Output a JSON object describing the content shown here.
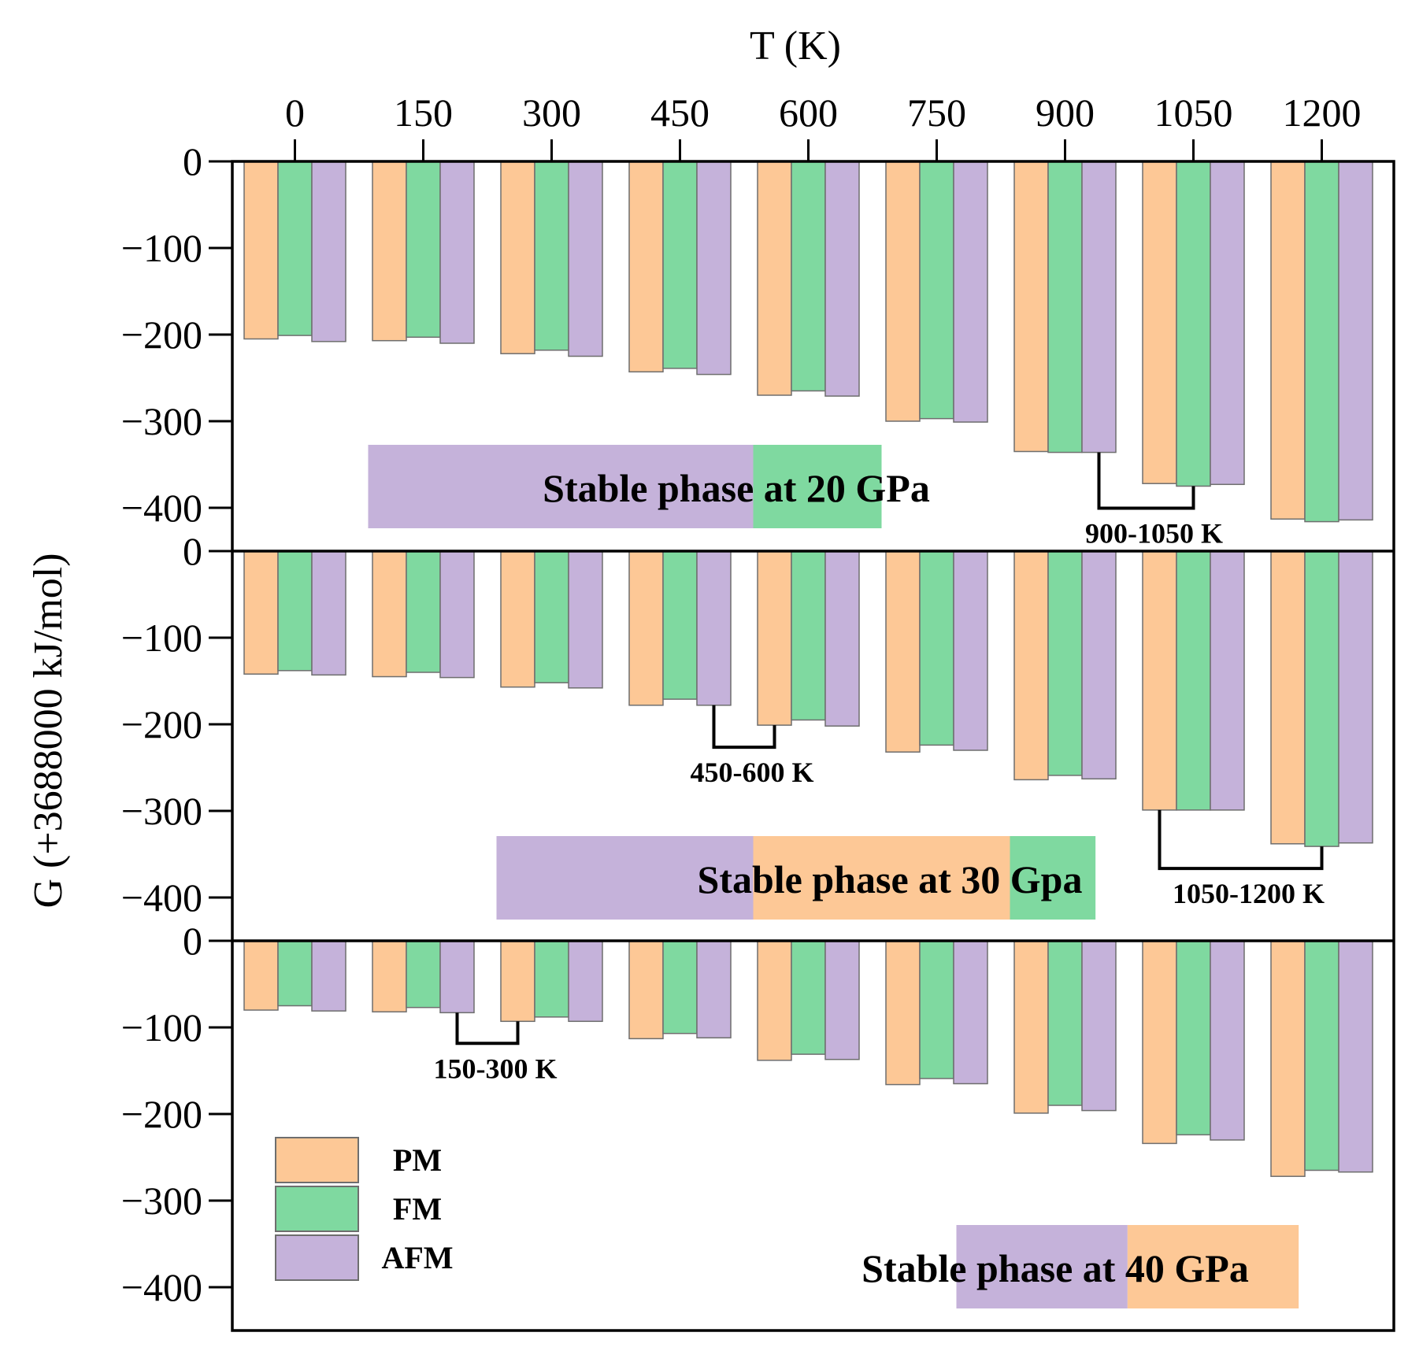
{
  "chart_data": {
    "type": "bar",
    "xlabel": "T (K)",
    "ylabel": "G (+3688000 kJ/mol)",
    "categories": [
      "0",
      "150",
      "300",
      "450",
      "600",
      "750",
      "900",
      "1050",
      "1200"
    ],
    "ylim": [
      -450,
      0
    ],
    "yticks": [
      0,
      -100,
      -200,
      -300,
      -400
    ],
    "ytick_labels": [
      "0",
      "−100",
      "−200",
      "−300",
      "−400"
    ],
    "colors": {
      "PM": "#fdc896",
      "FM": "#7fd9a0",
      "AFM": "#c5b2da",
      "axis": "#000000"
    },
    "legend": {
      "placement": "bottom-left of lowest panel",
      "entries": [
        "PM",
        "FM",
        "AFM"
      ]
    },
    "panels": [
      {
        "pressure": "20 GPa",
        "banner": {
          "text": "Stable phase at 20 GPa",
          "segments": [
            {
              "phase": "AFM",
              "from_T": 150,
              "to_T": 600
            },
            {
              "phase": "FM",
              "from_T": 600,
              "to_T": 750
            }
          ]
        },
        "series": [
          {
            "name": "PM",
            "values": [
              -205,
              -207,
              -222,
              -243,
              -270,
              -300,
              -335,
              -372,
              -413
            ]
          },
          {
            "name": "FM",
            "values": [
              -201,
              -203,
              -218,
              -239,
              -265,
              -297,
              -336,
              -375,
              -416
            ]
          },
          {
            "name": "AFM",
            "values": [
              -208,
              -210,
              -225,
              -246,
              -271,
              -301,
              -336,
              -373,
              -414
            ]
          }
        ],
        "annotation": {
          "label": "900-1050 K",
          "from": [
            6,
            "AFM"
          ],
          "to": [
            7,
            "FM"
          ]
        }
      },
      {
        "pressure": "30 Gpa",
        "banner": {
          "text": "Stable phase at 30 Gpa",
          "segments": [
            {
              "phase": "AFM",
              "from_T": 300,
              "to_T": 600
            },
            {
              "phase": "PM",
              "from_T": 600,
              "to_T": 900
            },
            {
              "phase": "FM",
              "from_T": 900,
              "to_T": 1000
            }
          ]
        },
        "series": [
          {
            "name": "PM",
            "values": [
              -142,
              -145,
              -157,
              -178,
              -201,
              -232,
              -264,
              -299,
              -338
            ]
          },
          {
            "name": "FM",
            "values": [
              -138,
              -140,
              -152,
              -171,
              -195,
              -224,
              -259,
              -299,
              -341
            ]
          },
          {
            "name": "AFM",
            "values": [
              -143,
              -146,
              -158,
              -178,
              -202,
              -230,
              -263,
              -299,
              -337
            ]
          }
        ],
        "annotations": [
          {
            "label": "450-600 K",
            "from": [
              3,
              "AFM"
            ],
            "to": [
              4,
              "PM"
            ]
          },
          {
            "label": "1050-1200 K",
            "from": [
              7,
              "PM"
            ],
            "to": [
              8,
              "FM"
            ]
          }
        ]
      },
      {
        "pressure": "40 GPa",
        "banner": {
          "text": "Stable phase at 40 GPa",
          "segments": [
            {
              "phase": "AFM",
              "from_T": 750,
              "to_T": 950
            },
            {
              "phase": "PM",
              "from_T": 950,
              "to_T": 1150
            }
          ]
        },
        "series": [
          {
            "name": "PM",
            "values": [
              -80,
              -82,
              -93,
              -113,
              -138,
              -166,
              -199,
              -234,
              -272
            ]
          },
          {
            "name": "FM",
            "values": [
              -75,
              -77,
              -88,
              -107,
              -131,
              -159,
              -190,
              -224,
              -265
            ]
          },
          {
            "name": "AFM",
            "values": [
              -81,
              -83,
              -93,
              -112,
              -137,
              -165,
              -196,
              -230,
              -267
            ]
          }
        ],
        "annotation": {
          "label": "150-300 K",
          "from": [
            1,
            "AFM"
          ],
          "to": [
            2,
            "PM"
          ]
        }
      }
    ]
  }
}
